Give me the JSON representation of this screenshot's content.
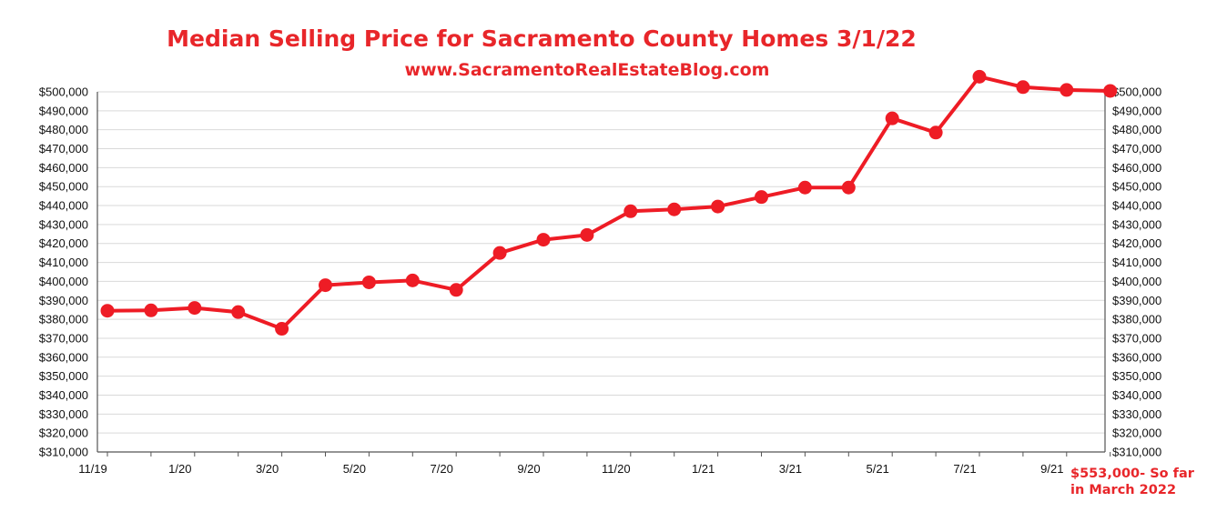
{
  "chart_data": {
    "type": "line",
    "title": "Median Selling Price for Sacramento County Homes 3/1/22",
    "subtitle": "www.SacramentoRealEstateBlog.com",
    "x_tick_labels": [
      "11/19",
      "1/20",
      "3/20",
      "5/20",
      "7/20",
      "9/20",
      "11/20",
      "1/21",
      "3/21",
      "5/21",
      "7/21",
      "9/21"
    ],
    "y_tick_labels": [
      "$500,000",
      "$490,000",
      "$480,000",
      "$470,000",
      "$460,000",
      "$450,000",
      "$440,000",
      "$430,000",
      "$420,000",
      "$410,000",
      "$400,000",
      "$390,000",
      "$380,000",
      "$370,000",
      "$360,000",
      "$350,000",
      "$340,000",
      "$330,000",
      "$320,000",
      "$310,000"
    ],
    "ylim": [
      310000,
      500000
    ],
    "y_axis_sides": "left and right",
    "grid": true,
    "line_color": "#ee1c25",
    "series": [
      {
        "x": [
          "11/19",
          "12/19",
          "1/20",
          "2/20",
          "3/20",
          "4/20",
          "5/20",
          "6/20",
          "7/20",
          "8/20",
          "9/20",
          "10/20",
          "11/20",
          "12/20",
          "1/21",
          "2/21",
          "3/21",
          "4/21",
          "5/21",
          "6/21",
          "7/21",
          "8/21",
          "9/21",
          "10/21"
        ],
        "values": [
          384500,
          384700,
          386000,
          383800,
          375000,
          398000,
          399500,
          400500,
          395500,
          415000,
          422000,
          424500,
          437000,
          438000,
          439500,
          444500,
          449500,
          449500,
          486000,
          478500,
          508000,
          502500,
          501000,
          500500
        ]
      }
    ],
    "annotation": [
      "$553,000- So far",
      "in  March 2022"
    ]
  }
}
